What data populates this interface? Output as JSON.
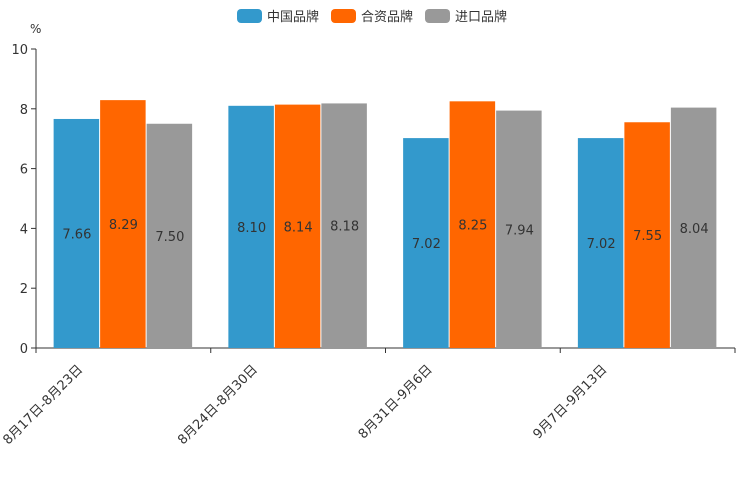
{
  "chart_data": {
    "type": "bar",
    "unit_label": "%",
    "categories": [
      "8月17日-8月23日",
      "8月24日-8月30日",
      "8月31日-9月6日",
      "9月7日-9月13日"
    ],
    "series": [
      {
        "name": "中国品牌",
        "color": "#3399cc",
        "values": [
          7.66,
          8.1,
          7.02,
          7.02
        ],
        "labels": [
          "7.66",
          "8.10",
          "7.02",
          "7.02"
        ]
      },
      {
        "name": "合资品牌",
        "color": "#ff6600",
        "values": [
          8.29,
          8.14,
          8.25,
          7.55
        ],
        "labels": [
          "8.29",
          "8.14",
          "8.25",
          "7.55"
        ]
      },
      {
        "name": "进口品牌",
        "color": "#999999",
        "values": [
          7.5,
          8.18,
          7.94,
          8.04
        ],
        "labels": [
          "7.50",
          "8.18",
          "7.94",
          "8.04"
        ]
      }
    ],
    "ylim": [
      0,
      10
    ],
    "yticks": [
      "0",
      "2",
      "4",
      "6",
      "8",
      "10"
    ],
    "legend_position": "top-center"
  }
}
